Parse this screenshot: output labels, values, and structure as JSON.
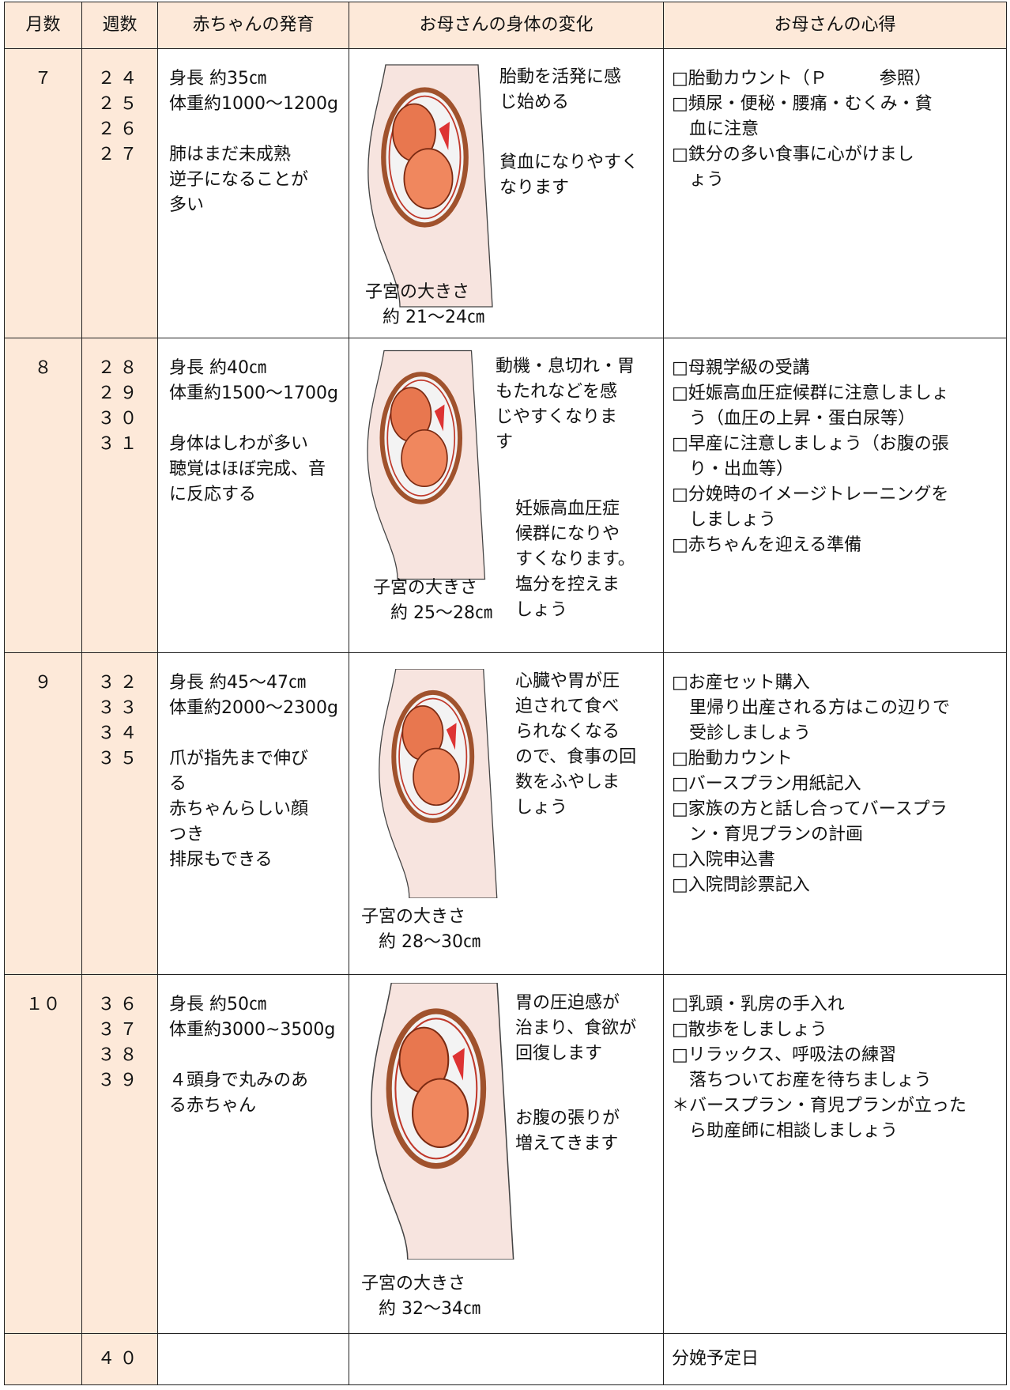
{
  "header": {
    "columns": [
      "月数",
      "週数",
      "赤ちゃんの発育",
      "お母さんの身体の変化",
      "お母さんの心得"
    ]
  },
  "rows": [
    {
      "month": "７",
      "weeks": [
        "２４",
        "２５",
        "２６",
        "２７"
      ],
      "baby": [
        [
          "身長 約35㎝",
          "体重約1000〜1200g"
        ],
        [
          "肺はまだ未成熟",
          "逆子になることが",
          "多い"
        ]
      ],
      "mother": {
        "blocks": [
          [
            "胎動を活発に感",
            "じ始める"
          ],
          [
            "貧血になりやすく",
            "なります"
          ]
        ],
        "uterus": [
          "子宮の大きさ",
          "約 21〜24㎝"
        ]
      },
      "advice": [
        "□胎動カウント（Ｐ　　　参照）",
        "□頻尿・便秘・腰痛・むくみ・貧",
        "血に注意",
        "□鉄分の多い食事に心がけまし",
        "ょう"
      ]
    },
    {
      "month": "８",
      "weeks": [
        "２８",
        "２９",
        "３０",
        "３１"
      ],
      "baby": [
        [
          "身長 約40㎝",
          "体重約1500〜1700g"
        ],
        [
          "身体はしわが多い",
          "聴覚はほぼ完成、音",
          "に反応する"
        ]
      ],
      "mother": {
        "blocks": [
          [
            "動機・息切れ・胃",
            "もたれなどを感",
            "じやすくなりま",
            "す"
          ],
          [
            "妊娠高血圧症",
            "候群になりや",
            "すくなります。",
            "塩分を控えま",
            "しょう"
          ]
        ],
        "uterus": [
          "子宮の大きさ",
          "約 25〜28㎝"
        ]
      },
      "advice": [
        "□母親学級の受講",
        "□妊娠高血圧症候群に注意しましょ",
        "う（血圧の上昇・蛋白尿等）",
        "□早産に注意しましょう（お腹の張",
        "り・出血等）",
        "□分娩時のイメージトレーニングを",
        "しましょう",
        "□赤ちゃんを迎える準備"
      ]
    },
    {
      "month": "９",
      "weeks": [
        "３２",
        "３３",
        "３４",
        "３５"
      ],
      "baby": [
        [
          "身長 約45〜47㎝",
          "体重約2000〜2300g"
        ],
        [
          "爪が指先まで伸び",
          "る",
          "赤ちゃんらしい顔",
          "つき",
          "排尿もできる"
        ]
      ],
      "mother": {
        "blocks": [
          [
            "心臓や胃が圧",
            "迫されて食べ",
            "られなくなる",
            "ので、食事の回",
            "数をふやしま",
            "しょう"
          ]
        ],
        "uterus": [
          "子宮の大きさ",
          "約 28〜30㎝"
        ]
      },
      "advice": [
        "□お産セット購入",
        "里帰り出産される方はこの辺りで",
        "受診しましょう",
        "□胎動カウント",
        "□バースプラン用紙記入",
        "□家族の方と話し合ってバースプラ",
        "ン・育児プランの計画",
        "□入院申込書",
        "□入院問診票記入"
      ]
    },
    {
      "month": "１０",
      "weeks": [
        "３６",
        "３７",
        "３８",
        "３９"
      ],
      "baby": [
        [
          "身長 約50㎝",
          "体重約3000~3500g"
        ],
        [
          "４頭身で丸みのあ",
          "る赤ちゃん"
        ]
      ],
      "mother": {
        "blocks": [
          [
            "胃の圧迫感が",
            "治まり、食欲が",
            "回復します"
          ],
          [
            "お腹の張りが",
            "増えてきます"
          ]
        ],
        "uterus": [
          "子宮の大きさ",
          "約 32〜34㎝"
        ]
      },
      "advice": [
        "□乳頭・乳房の手入れ",
        "□散歩をしましょう",
        "□リラックス、呼吸法の練習",
        "落ちついてお産を待ちましょう",
        "＊バースプラン・育児プランが立った",
        "ら助産師に相談しましょう"
      ]
    },
    {
      "weeks": [
        "４０"
      ],
      "advice": [
        "分娩予定日"
      ]
    }
  ]
}
